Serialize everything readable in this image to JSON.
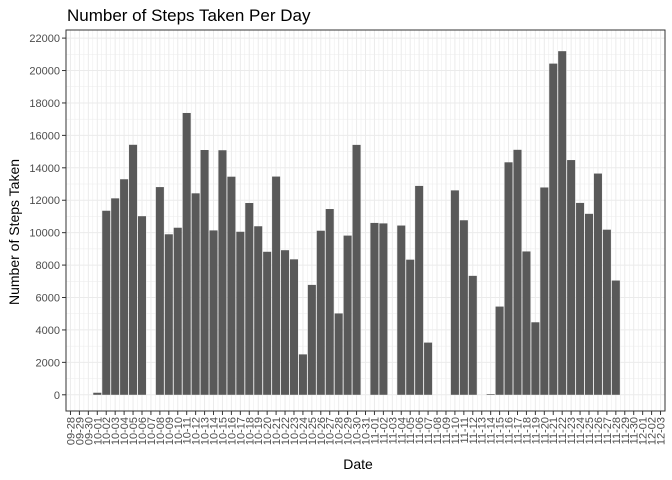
{
  "chart_data": {
    "type": "bar",
    "title": "Number of Steps Taken Per Day",
    "xlabel": "Date",
    "ylabel": "Number of Steps Taken",
    "ylim": [
      -1000,
      22500
    ],
    "yticks": [
      0,
      2000,
      4000,
      6000,
      8000,
      10000,
      12000,
      14000,
      16000,
      18000,
      20000,
      22000
    ],
    "ytick_labels": [
      "0",
      "2000",
      "4000",
      "6000",
      "8000",
      "10000",
      "12000",
      "14000",
      "16000",
      "18000",
      "20000",
      "22000"
    ],
    "xlim": [
      "09-28",
      "12-03"
    ],
    "xtick_labels": [
      "09-28",
      "09-29",
      "09-30",
      "10-01",
      "10-02",
      "10-03",
      "10-04",
      "10-05",
      "10-06",
      "10-07",
      "10-08",
      "10-09",
      "10-10",
      "10-11",
      "10-12",
      "10-13",
      "10-14",
      "10-15",
      "10-16",
      "10-17",
      "10-18",
      "10-19",
      "10-20",
      "10-21",
      "10-22",
      "10-23",
      "10-24",
      "10-25",
      "10-26",
      "10-27",
      "10-28",
      "10-29",
      "10-30",
      "10-31",
      "11-01",
      "11-02",
      "11-03",
      "11-04",
      "11-05",
      "11-06",
      "11-07",
      "11-08",
      "11-09",
      "11-10",
      "11-11",
      "11-12",
      "11-13",
      "11-14",
      "11-15",
      "11-16",
      "11-17",
      "11-18",
      "11-19",
      "11-20",
      "11-21",
      "11-22",
      "11-23",
      "11-24",
      "11-25",
      "11-26",
      "11-27",
      "11-28",
      "11-29",
      "11-30",
      "12-01",
      "12-02",
      "12-03"
    ],
    "bar_color": "#595959",
    "panel_border_color": "#333333",
    "grid_color": "#ebebeb",
    "grid": true,
    "categories": [
      "10-01",
      "10-02",
      "10-03",
      "10-04",
      "10-05",
      "10-06",
      "10-07",
      "10-08",
      "10-09",
      "10-10",
      "10-11",
      "10-12",
      "10-13",
      "10-14",
      "10-15",
      "10-16",
      "10-17",
      "10-18",
      "10-19",
      "10-20",
      "10-21",
      "10-22",
      "10-23",
      "10-24",
      "10-25",
      "10-26",
      "10-27",
      "10-28",
      "10-29",
      "10-30",
      "10-31",
      "11-01",
      "11-02",
      "11-03",
      "11-04",
      "11-05",
      "11-06",
      "11-07",
      "11-08",
      "11-09",
      "11-10",
      "11-11",
      "11-12",
      "11-13",
      "11-14",
      "11-15",
      "11-16",
      "11-17",
      "11-18",
      "11-19",
      "11-20",
      "11-21",
      "11-22",
      "11-23",
      "11-24",
      "11-25",
      "11-26",
      "11-27",
      "11-28",
      "11-29",
      "11-30"
    ],
    "values": [
      126,
      11352,
      12116,
      13294,
      15420,
      11015,
      0,
      12811,
      9900,
      10304,
      17382,
      12426,
      15098,
      10139,
      15084,
      13452,
      10056,
      11829,
      10395,
      8821,
      13460,
      8918,
      8355,
      2492,
      6778,
      10119,
      11458,
      5018,
      9819,
      15414,
      0,
      10600,
      10571,
      0,
      10439,
      8334,
      12883,
      3219,
      0,
      0,
      12608,
      10765,
      7336,
      0,
      41,
      5441,
      14339,
      15110,
      8841,
      4472,
      12787,
      20427,
      21194,
      14478,
      11834,
      11162,
      13646,
      10183,
      7047,
      0,
      0
    ]
  }
}
